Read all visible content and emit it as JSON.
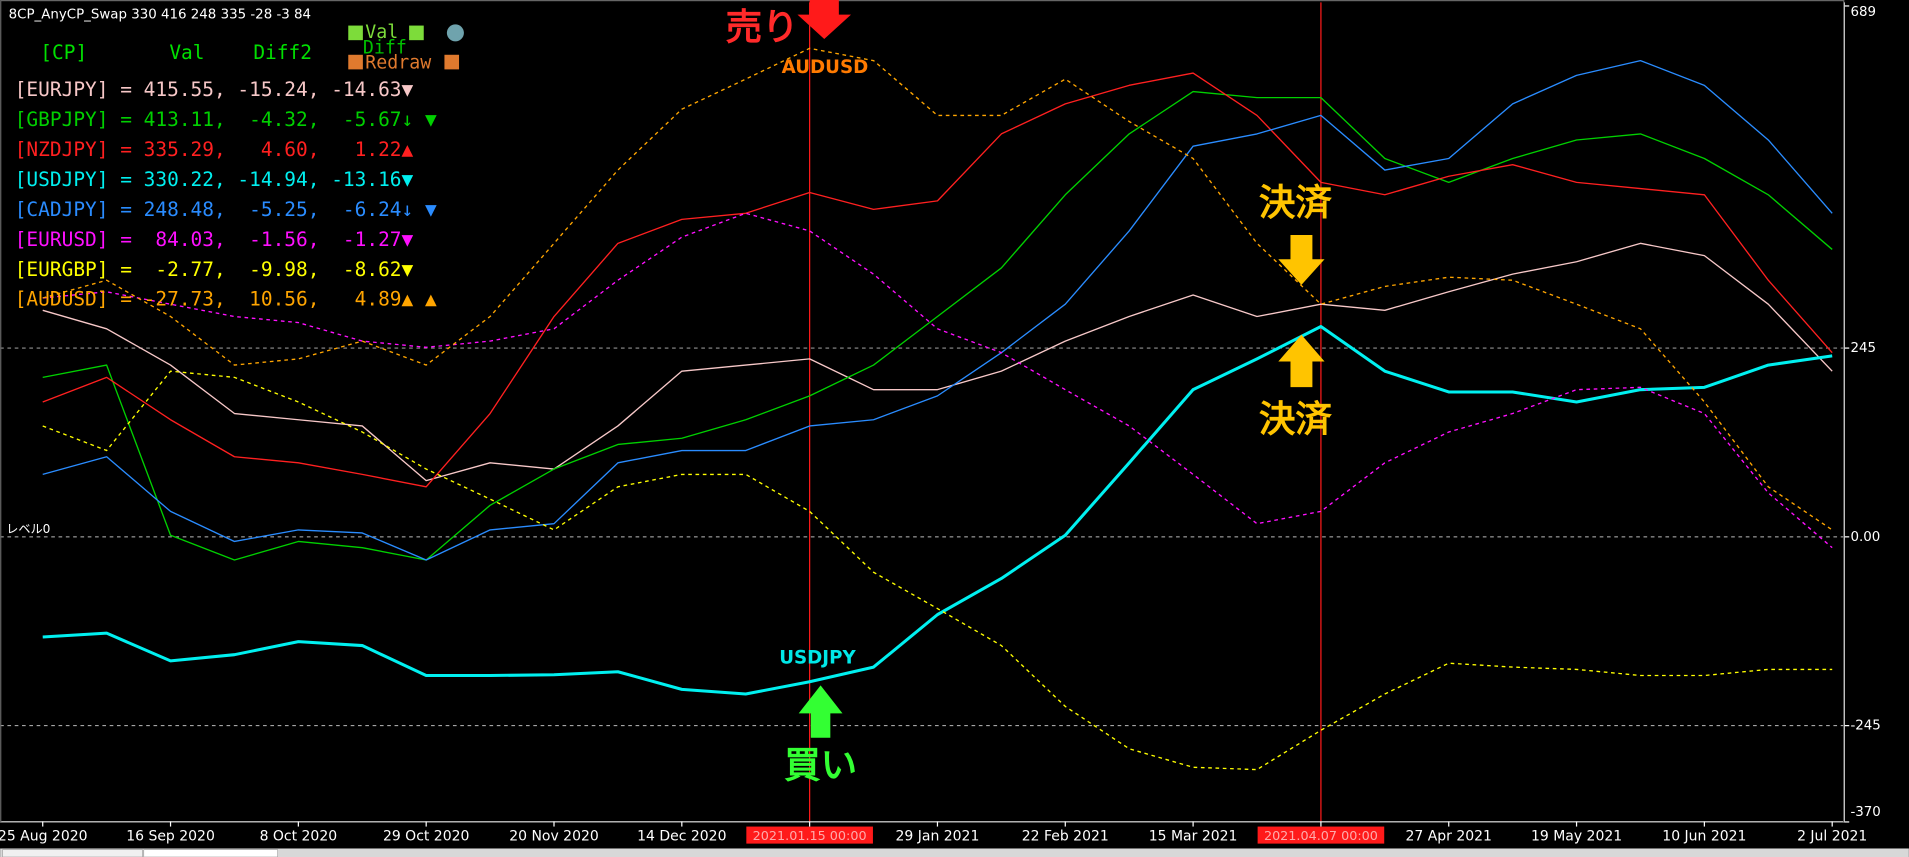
{
  "chart_data": {
    "type": "line",
    "title": "8CP_AnyCP_Swap 330 416 248 335 -28 -3 84",
    "level_label": "レベル0",
    "header": [
      "[CP]",
      "Val",
      "Diff2"
    ],
    "buttons": [
      "Val",
      "Diff",
      "Redraw"
    ],
    "annotations": [
      "売り",
      "AUDUSD",
      "USDJPY",
      "買い",
      "決済",
      "決済"
    ],
    "categories": [
      "25 Aug 2020",
      null,
      "16 Sep 2020",
      null,
      "8 Oct 2020",
      null,
      "29 Oct 2020",
      null,
      "20 Nov 2020",
      null,
      "14 Dec 2020",
      null,
      "2021.01.15 00:00",
      null,
      "29 Jan 2021",
      null,
      "22 Feb 2021",
      null,
      "15 Mar 2021",
      null,
      "2021.04.07 00:00",
      null,
      "27 Apr 2021",
      null,
      "19 May 2021",
      null,
      "10 Jun 2021",
      null,
      "2 Jul 2021"
    ],
    "vlines": [
      "2021.01.15 00:00",
      "2021.04.07 00:00"
    ],
    "vline_color": "#ff1a1a",
    "ylim": [
      -370,
      689
    ],
    "yticks": [
      689,
      245,
      {
        "value": 0,
        "label": "0.00"
      },
      -245,
      -370
    ],
    "grid": true,
    "series": [
      {
        "name": "[EURJPY]",
        "line": " = 415.55, -15.24, -14.63",
        "mark": "▼",
        "color": "#f7c8c8",
        "dashed": false,
        "values": [
          294,
          270,
          223,
          160,
          152,
          144,
          73,
          96,
          88,
          144,
          215,
          223,
          231,
          191,
          191,
          215,
          254,
          286,
          314,
          286,
          302,
          294,
          318,
          341,
          357,
          381,
          365,
          302,
          215
        ]
      },
      {
        "name": "[GBPJPY]",
        "line": " = 413.11,  -4.32,  -5.67",
        "mark": "↓ ▼",
        "color": "#00d000",
        "dashed": false,
        "values": [
          207,
          223,
          2,
          -30,
          -6,
          -14,
          -30,
          41,
          88,
          120,
          128,
          152,
          183,
          223,
          286,
          349,
          444,
          523,
          578,
          570,
          570,
          491,
          460,
          491,
          515,
          523,
          491,
          444,
          373
        ]
      },
      {
        "name": "[NZDJPY]",
        "line": " = 335.29,   4.60,   1.22",
        "mark": "▲",
        "color": "#ff2020",
        "dashed": false,
        "values": [
          175,
          207,
          152,
          104,
          96,
          81,
          65,
          160,
          286,
          381,
          412,
          420,
          447,
          425,
          436,
          523,
          562,
          586,
          602,
          547,
          460,
          444,
          468,
          483,
          460,
          452,
          444,
          333,
          239
        ]
      },
      {
        "name": "[USDJPY]",
        "line": " = 330.22, -14.94, -13.16",
        "mark": "▼",
        "color": "#00f0f0",
        "dashed": false,
        "width": 2.5,
        "values": [
          -130,
          -125,
          -161,
          -153,
          -136,
          -141,
          -180,
          -180,
          -179,
          -175,
          -198,
          -204,
          -188,
          -169,
          -101,
          -54,
          2,
          96,
          191,
          231,
          273,
          215,
          188,
          188,
          175,
          191,
          194,
          223,
          235
        ]
      },
      {
        "name": "[CADJPY]",
        "line": " = 248.48,  -5.25,  -6.24",
        "mark": "↓ ▼",
        "color": "#2a8cff",
        "dashed": false,
        "values": [
          81,
          104,
          33,
          -6,
          9,
          5,
          -30,
          9,
          17,
          96,
          112,
          112,
          144,
          152,
          183,
          239,
          302,
          397,
          507,
          523,
          547,
          476,
          491,
          562,
          599,
          618,
          586,
          515,
          420
        ]
      },
      {
        "name": "[EURUSD]",
        "line": " =  84.03,  -1.56,  -1.27",
        "mark": "▼",
        "color": "#ff10ff",
        "dashed": true,
        "values": [
          310,
          318,
          302,
          286,
          278,
          254,
          246,
          254,
          270,
          333,
          389,
          420,
          397,
          341,
          270,
          239,
          191,
          144,
          81,
          17,
          33,
          96,
          136,
          160,
          191,
          194,
          160,
          57,
          -14
        ]
      },
      {
        "name": "[EURGBP]",
        "line": " =  -2.77,  -9.98,  -8.62",
        "mark": "▼",
        "color": "#ffff00",
        "dashed": true,
        "values": [
          144,
          112,
          215,
          207,
          175,
          136,
          88,
          49,
          9,
          65,
          81,
          81,
          33,
          -46,
          -93,
          -141,
          -220,
          -275,
          -299,
          -302,
          -251,
          -204,
          -164,
          -169,
          -172,
          -180,
          -180,
          -172,
          -172
        ]
      },
      {
        "name": "[AUDUSD]",
        "line": " = -27.73,  10.56,   4.89",
        "mark": "▲ ▲",
        "color": "#ffa500",
        "dashed": true,
        "values": [
          310,
          333,
          286,
          223,
          231,
          254,
          223,
          286,
          381,
          476,
          555,
          594,
          634,
          618,
          547,
          547,
          594,
          539,
          491,
          381,
          302,
          325,
          337,
          333,
          302,
          270,
          175,
          65,
          9
        ]
      }
    ]
  }
}
